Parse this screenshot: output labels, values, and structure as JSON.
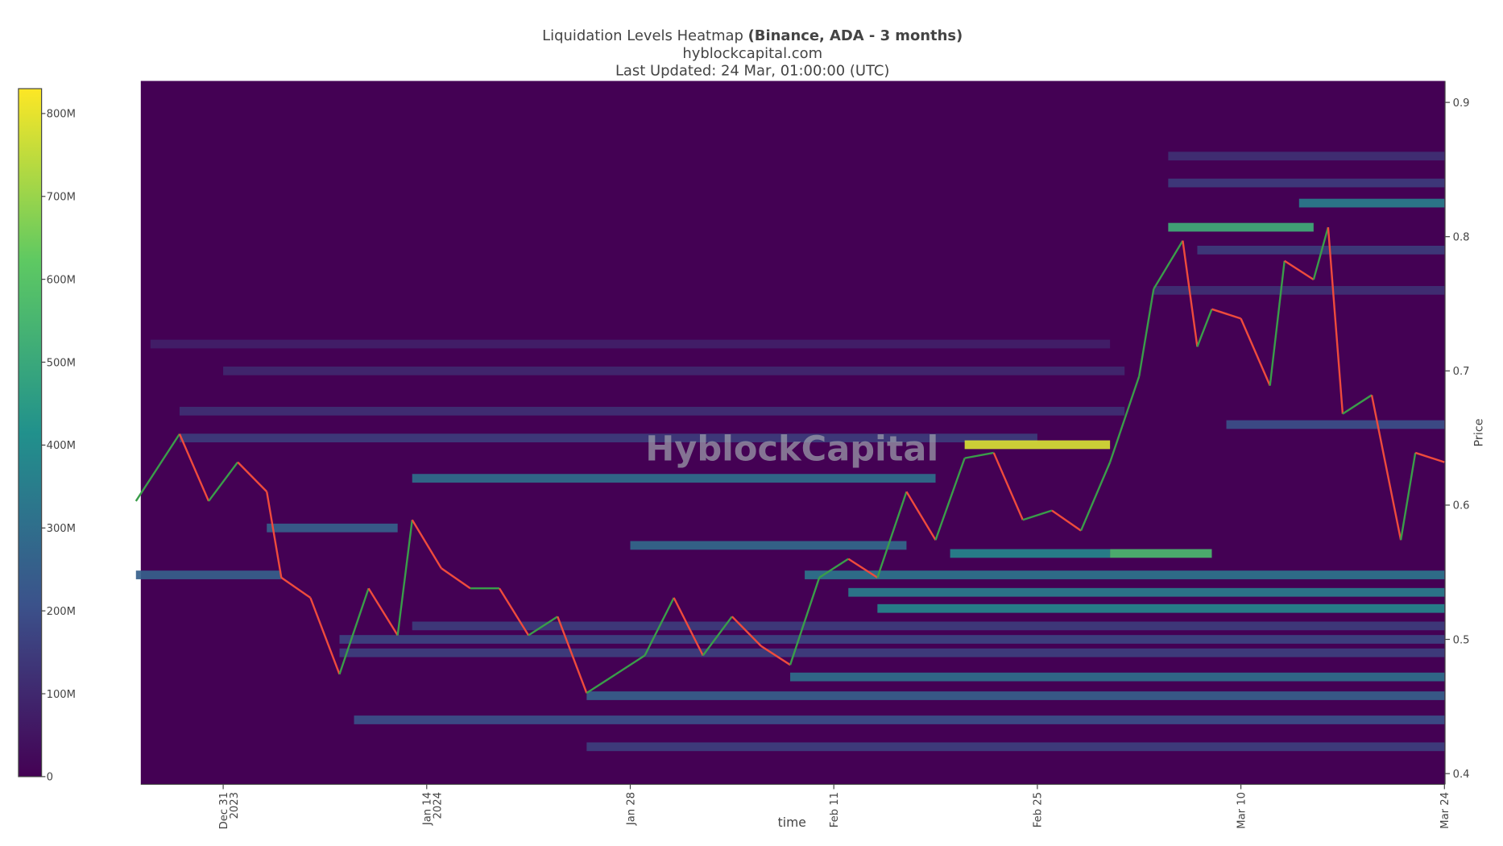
{
  "chart_data": {
    "type": "heatmap",
    "title": "Liquidation Levels Heatmap",
    "title_bold": "(Binance, ADA - 3 months)",
    "subtitle": "hyblockcapital.com",
    "updated": "Last Updated: 24 Mar, 01:00:00 (UTC)",
    "watermark": "HyblockCapital",
    "x_label": "time",
    "y_label": "Price",
    "xlim": [
      "2023-12-25T08:00Z",
      "2024-03-24T01:00Z"
    ],
    "xticks": [
      {
        "value": "2023-12-31",
        "label": "Dec 31"
      },
      {
        "value": "2024-01-14",
        "label": "Jan 14"
      },
      {
        "value": "2024-01-28",
        "label": "Jan 28"
      },
      {
        "value": "2024-02-11",
        "label": "Feb 11"
      },
      {
        "value": "2024-02-25",
        "label": "Feb 25"
      },
      {
        "value": "2024-03-10",
        "label": "Mar 10"
      },
      {
        "value": "2024-03-24",
        "label": "Mar 24"
      }
    ],
    "year_labels": [
      {
        "value": "2023-12-31",
        "label": "2023"
      },
      {
        "value": "2024-01-14",
        "label": "2024"
      }
    ],
    "ylim": [
      0.392,
      0.916
    ],
    "yticks": [
      0.4,
      0.5,
      0.6,
      0.7,
      0.8,
      0.9
    ],
    "zlim": [
      0,
      830000000
    ],
    "zticks": [
      {
        "value": 0,
        "label": "0"
      },
      {
        "value": 100000000,
        "label": "100M"
      },
      {
        "value": 200000000,
        "label": "200M"
      },
      {
        "value": 300000000,
        "label": "300M"
      },
      {
        "value": 400000000,
        "label": "400M"
      },
      {
        "value": 500000000,
        "label": "500M"
      },
      {
        "value": 600000000,
        "label": "600M"
      },
      {
        "value": 700000000,
        "label": "700M"
      },
      {
        "value": 800000000,
        "label": "800M"
      }
    ],
    "levels": [
      {
        "price": 0.72,
        "start": "2023-12-26",
        "end": "2024-03-01",
        "value": 80000000
      },
      {
        "price": 0.7,
        "start": "2023-12-31",
        "end": "2024-03-02",
        "value": 100000000
      },
      {
        "price": 0.67,
        "start": "2023-12-28",
        "end": "2024-03-02",
        "value": 120000000
      },
      {
        "price": 0.65,
        "start": "2023-12-28",
        "end": "2024-02-25",
        "value": 150000000
      },
      {
        "price": 0.62,
        "start": "2024-01-13",
        "end": "2024-02-18",
        "value": 300000000
      },
      {
        "price": 0.583,
        "start": "2024-01-03",
        "end": "2024-01-12",
        "value": 250000000
      },
      {
        "price": 0.548,
        "start": "2023-12-25",
        "end": "2024-01-04",
        "value": 250000000
      },
      {
        "price": 0.57,
        "start": "2024-01-28",
        "end": "2024-02-16",
        "value": 280000000
      },
      {
        "price": 0.51,
        "start": "2024-01-13",
        "end": "2024-03-24",
        "value": 150000000
      },
      {
        "price": 0.5,
        "start": "2024-01-08",
        "end": "2024-03-24",
        "value": 170000000
      },
      {
        "price": 0.49,
        "start": "2024-01-08",
        "end": "2024-03-24",
        "value": 160000000
      },
      {
        "price": 0.44,
        "start": "2024-01-09",
        "end": "2024-03-24",
        "value": 200000000
      },
      {
        "price": 0.42,
        "start": "2024-01-25",
        "end": "2024-03-24",
        "value": 160000000
      },
      {
        "price": 0.458,
        "start": "2024-01-25",
        "end": "2024-03-24",
        "value": 250000000
      },
      {
        "price": 0.472,
        "start": "2024-02-08",
        "end": "2024-03-24",
        "value": 300000000
      },
      {
        "price": 0.548,
        "start": "2024-02-09",
        "end": "2024-03-24",
        "value": 320000000
      },
      {
        "price": 0.535,
        "start": "2024-02-12",
        "end": "2024-03-24",
        "value": 350000000
      },
      {
        "price": 0.523,
        "start": "2024-02-14",
        "end": "2024-03-24",
        "value": 380000000
      },
      {
        "price": 0.564,
        "start": "2024-02-19",
        "end": "2024-03-01",
        "value": 380000000
      },
      {
        "price": 0.564,
        "start": "2024-03-01",
        "end": "2024-03-08",
        "value": 560000000
      },
      {
        "price": 0.645,
        "start": "2024-02-20",
        "end": "2024-03-01",
        "value": 780000000
      },
      {
        "price": 0.66,
        "start": "2024-03-09",
        "end": "2024-03-24",
        "value": 200000000
      },
      {
        "price": 0.76,
        "start": "2024-03-04",
        "end": "2024-03-24",
        "value": 120000000
      },
      {
        "price": 0.79,
        "start": "2024-03-07",
        "end": "2024-03-24",
        "value": 150000000
      },
      {
        "price": 0.807,
        "start": "2024-03-05",
        "end": "2024-03-15",
        "value": 520000000
      },
      {
        "price": 0.825,
        "start": "2024-03-14",
        "end": "2024-03-24",
        "value": 350000000
      },
      {
        "price": 0.84,
        "start": "2024-03-05",
        "end": "2024-03-24",
        "value": 150000000
      },
      {
        "price": 0.86,
        "start": "2024-03-05",
        "end": "2024-03-24",
        "value": 120000000
      }
    ],
    "price": {
      "x": [
        "2023-12-25",
        "2023-12-28",
        "2023-12-30",
        "2024-01-01",
        "2024-01-03",
        "2024-01-04",
        "2024-01-06",
        "2024-01-08",
        "2024-01-10",
        "2024-01-12",
        "2024-01-13",
        "2024-01-15",
        "2024-01-17",
        "2024-01-19",
        "2024-01-21",
        "2024-01-23",
        "2024-01-25",
        "2024-01-27",
        "2024-01-29",
        "2024-01-31",
        "2024-02-02",
        "2024-02-04",
        "2024-02-06",
        "2024-02-08",
        "2024-02-10",
        "2024-02-12",
        "2024-02-14",
        "2024-02-16",
        "2024-02-18",
        "2024-02-20",
        "2024-02-22",
        "2024-02-24",
        "2024-02-26",
        "2024-02-28",
        "2024-03-01",
        "2024-03-03",
        "2024-03-04",
        "2024-03-06",
        "2024-03-07",
        "2024-03-08",
        "2024-03-10",
        "2024-03-12",
        "2024-03-13",
        "2024-03-15",
        "2024-03-16",
        "2024-03-17",
        "2024-03-19",
        "2024-03-21",
        "2024-03-22",
        "2024-03-24"
      ],
      "values": [
        0.603,
        0.653,
        0.603,
        0.632,
        0.61,
        0.546,
        0.531,
        0.474,
        0.538,
        0.503,
        0.589,
        0.553,
        0.538,
        0.538,
        0.503,
        0.517,
        0.46,
        0.474,
        0.488,
        0.531,
        0.488,
        0.517,
        0.495,
        0.481,
        0.546,
        0.56,
        0.546,
        0.61,
        0.574,
        0.635,
        0.639,
        0.589,
        0.596,
        0.581,
        0.632,
        0.696,
        0.761,
        0.797,
        0.718,
        0.746,
        0.739,
        0.689,
        0.782,
        0.768,
        0.807,
        0.668,
        0.682,
        0.574,
        0.639,
        0.632
      ],
      "up_color": "#3a9d4a",
      "down_color": "#ef4b3c"
    }
  }
}
